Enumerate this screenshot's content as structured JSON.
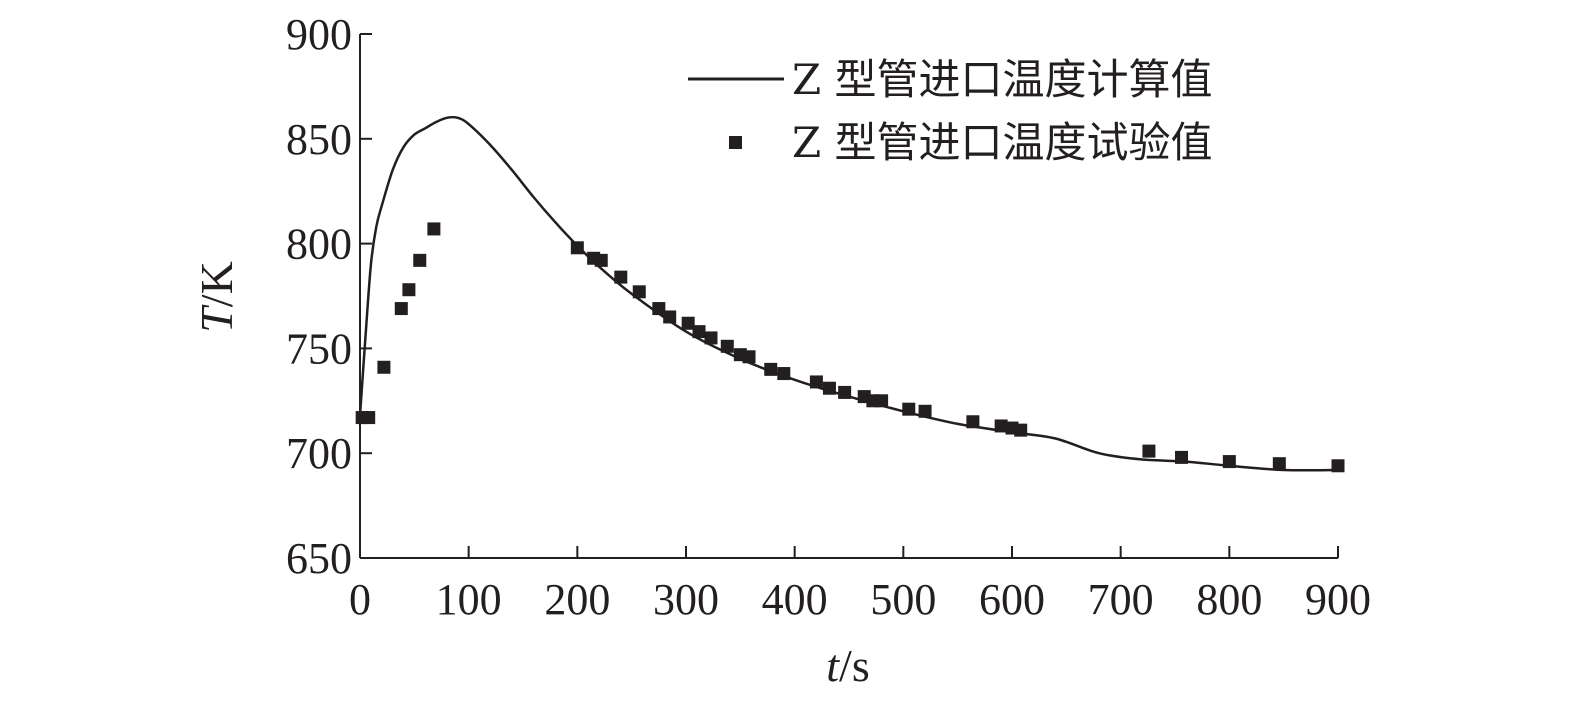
{
  "chart_data": {
    "type": "line",
    "title": "",
    "xlabel": {
      "var": "t",
      "unit": "/s"
    },
    "ylabel": {
      "var": "T",
      "unit": "/K"
    },
    "xlim": [
      0,
      900
    ],
    "ylim": [
      650,
      900
    ],
    "xticks": [
      "0",
      "100",
      "200",
      "300",
      "400",
      "500",
      "600",
      "700",
      "800",
      "900"
    ],
    "yticks": [
      "650",
      "700",
      "750",
      "800",
      "850",
      "900"
    ],
    "grid": false,
    "legend_position": "top-right",
    "colors": {
      "line": "#231f20",
      "marker": "#231f20",
      "axis": "#231f20"
    },
    "series": [
      {
        "name": "Z 型管进口温度计算值",
        "kind": "line",
        "x": [
          0,
          5,
          10,
          15,
          20,
          30,
          40,
          50,
          60,
          70,
          80,
          90,
          100,
          120,
          140,
          160,
          180,
          200,
          220,
          250,
          300,
          350,
          400,
          450,
          500,
          550,
          600,
          640,
          680,
          720,
          760,
          800,
          850,
          900
        ],
        "y": [
          718,
          755,
          790,
          808,
          818,
          835,
          846,
          852,
          855,
          858,
          860,
          860,
          857,
          847,
          835,
          822,
          810,
          799,
          789,
          776,
          758,
          745,
          735,
          727,
          720,
          714,
          710,
          707,
          700,
          697,
          696,
          694,
          692,
          692
        ]
      },
      {
        "name": "Z 型管进口温度试验值",
        "kind": "scatter",
        "x": [
          2,
          8,
          22,
          38,
          45,
          55,
          68,
          200,
          215,
          222,
          240,
          257,
          275,
          285,
          302,
          312,
          323,
          338,
          350,
          358,
          378,
          390,
          420,
          432,
          446,
          464,
          472,
          480,
          505,
          520,
          564,
          590,
          600,
          608,
          726,
          756,
          800,
          846,
          900
        ],
        "y": [
          717,
          717,
          741,
          769,
          778,
          792,
          807,
          798,
          793,
          792,
          784,
          777,
          769,
          765,
          762,
          758,
          755,
          751,
          747,
          746,
          740,
          738,
          734,
          731,
          729,
          727,
          725,
          725,
          721,
          720,
          715,
          713,
          712,
          711,
          701,
          698,
          696,
          695,
          694
        ]
      }
    ]
  }
}
